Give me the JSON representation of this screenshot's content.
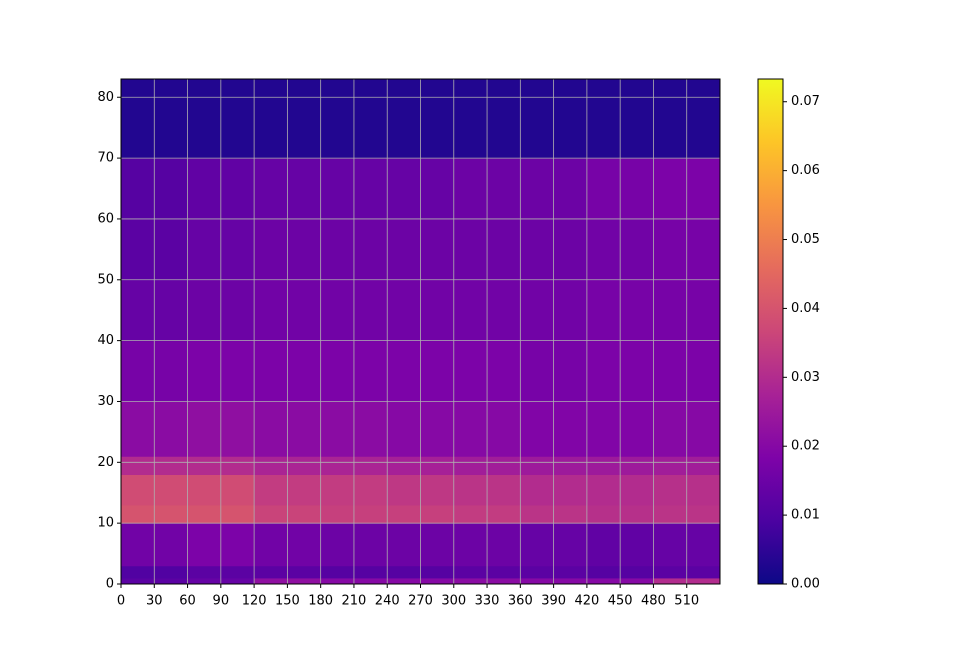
{
  "chart_data": {
    "type": "heatmap",
    "colormap": "plasma",
    "x_edges": [
      0,
      60,
      120,
      180,
      240,
      300,
      360,
      420,
      480,
      540
    ],
    "y_edges": [
      0,
      1,
      3,
      10,
      13,
      18,
      21,
      30,
      40,
      50,
      60,
      70,
      83
    ],
    "values": [
      [
        0.012,
        0.014,
        0.022,
        0.02,
        0.02,
        0.021,
        0.02,
        0.02,
        0.03
      ],
      [
        0.01,
        0.012,
        0.012,
        0.011,
        0.011,
        0.012,
        0.012,
        0.011,
        0.012
      ],
      [
        0.016,
        0.018,
        0.016,
        0.015,
        0.015,
        0.015,
        0.014,
        0.013,
        0.014
      ],
      [
        0.04,
        0.04,
        0.036,
        0.035,
        0.035,
        0.034,
        0.032,
        0.031,
        0.032
      ],
      [
        0.038,
        0.038,
        0.034,
        0.034,
        0.033,
        0.032,
        0.03,
        0.03,
        0.031
      ],
      [
        0.03,
        0.03,
        0.028,
        0.028,
        0.027,
        0.026,
        0.025,
        0.025,
        0.026
      ],
      [
        0.021,
        0.022,
        0.021,
        0.021,
        0.02,
        0.02,
        0.019,
        0.019,
        0.02
      ],
      [
        0.017,
        0.018,
        0.018,
        0.018,
        0.018,
        0.018,
        0.017,
        0.018,
        0.018
      ],
      [
        0.014,
        0.015,
        0.016,
        0.016,
        0.016,
        0.016,
        0.016,
        0.017,
        0.017
      ],
      [
        0.012,
        0.014,
        0.015,
        0.015,
        0.015,
        0.015,
        0.015,
        0.016,
        0.017
      ],
      [
        0.011,
        0.013,
        0.014,
        0.014,
        0.014,
        0.015,
        0.015,
        0.017,
        0.018
      ],
      [
        0.003,
        0.003,
        0.003,
        0.003,
        0.003,
        0.003,
        0.003,
        0.003,
        0.003
      ]
    ],
    "xlim": [
      0,
      540
    ],
    "ylim": [
      0,
      83
    ],
    "xticks": [
      0,
      30,
      60,
      90,
      120,
      150,
      180,
      210,
      240,
      270,
      300,
      330,
      360,
      390,
      420,
      450,
      480,
      510
    ],
    "yticks": [
      0,
      10,
      20,
      30,
      40,
      50,
      60,
      70,
      80
    ],
    "clim": [
      0,
      0.0733
    ],
    "cticks": [
      0.0,
      0.01,
      0.02,
      0.03,
      0.04,
      0.05,
      0.06,
      0.07
    ],
    "grid": true
  }
}
